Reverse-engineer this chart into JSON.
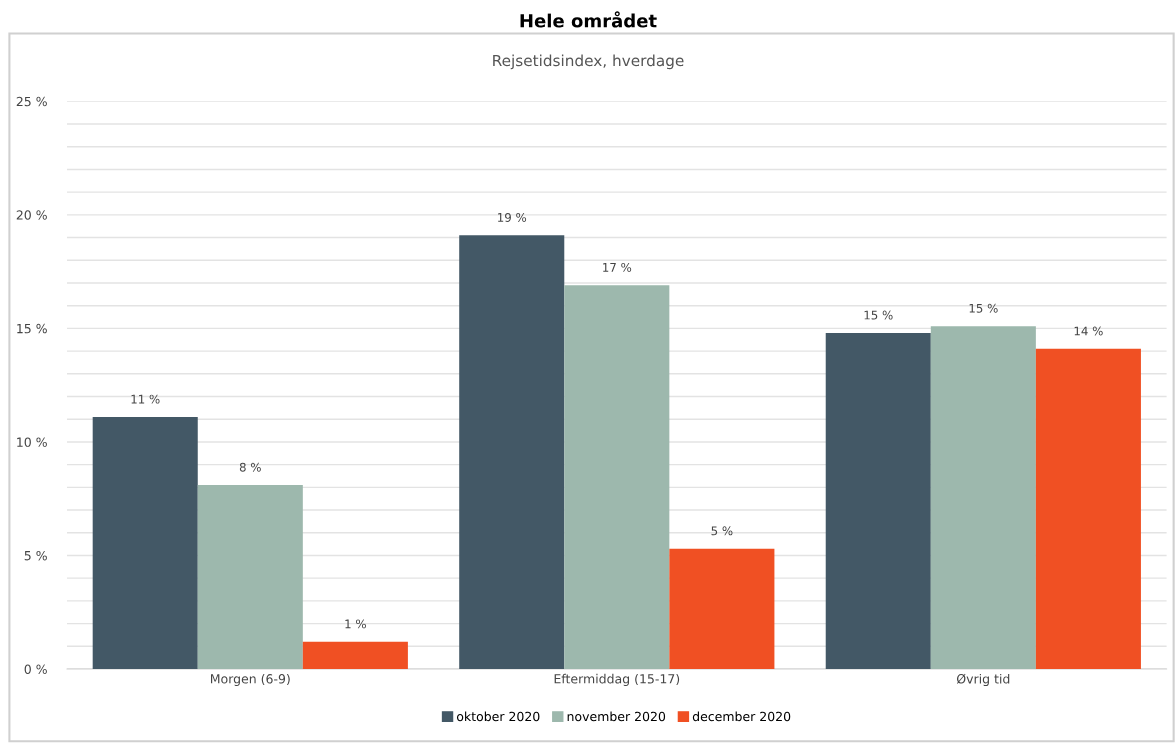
{
  "chart_data": {
    "type": "bar",
    "title": "Hele området",
    "subtitle": "Rejsetidsindex, hverdage",
    "categories": [
      "Morgen (6-9)",
      "Eftermiddag (15-17)",
      "Øvrig tid"
    ],
    "series": [
      {
        "name": "oktober 2020",
        "color": "#435866",
        "values": [
          11.1,
          19.1,
          14.8
        ],
        "value_labels": [
          "11 %",
          "19 %",
          "15 %"
        ]
      },
      {
        "name": "november 2020",
        "color": "#9db8ad",
        "values": [
          8.1,
          16.9,
          15.1
        ],
        "value_labels": [
          "8 %",
          "17 %",
          "15 %"
        ]
      },
      {
        "name": "december 2020",
        "color": "#f05023",
        "values": [
          1.2,
          5.3,
          14.1
        ],
        "value_labels": [
          "1 %",
          "5 %",
          "14 %"
        ]
      }
    ],
    "ylim": [
      0,
      25
    ],
    "yticks": [
      {
        "value": 0,
        "label": "0 %"
      },
      {
        "value": 1,
        "label": null
      },
      {
        "value": 2,
        "label": null
      },
      {
        "value": 3,
        "label": null
      },
      {
        "value": 4,
        "label": null
      },
      {
        "value": 5,
        "label": "5 %"
      },
      {
        "value": 6,
        "label": null
      },
      {
        "value": 7,
        "label": null
      },
      {
        "value": 8,
        "label": null
      },
      {
        "value": 9,
        "label": null
      },
      {
        "value": 10,
        "label": "10 %"
      },
      {
        "value": 11,
        "label": null
      },
      {
        "value": 12,
        "label": null
      },
      {
        "value": 13,
        "label": null
      },
      {
        "value": 14,
        "label": null
      },
      {
        "value": 15,
        "label": "15 %"
      },
      {
        "value": 16,
        "label": null
      },
      {
        "value": 17,
        "label": null
      },
      {
        "value": 18,
        "label": null
      },
      {
        "value": 19,
        "label": null
      },
      {
        "value": 20,
        "label": "20 %"
      },
      {
        "value": 21,
        "label": null
      },
      {
        "value": 22,
        "label": null
      },
      {
        "value": 23,
        "label": null
      },
      {
        "value": 24,
        "label": null
      },
      {
        "value": 25,
        "label": "25 %"
      }
    ],
    "grid": "y",
    "legend": "bottom"
  }
}
